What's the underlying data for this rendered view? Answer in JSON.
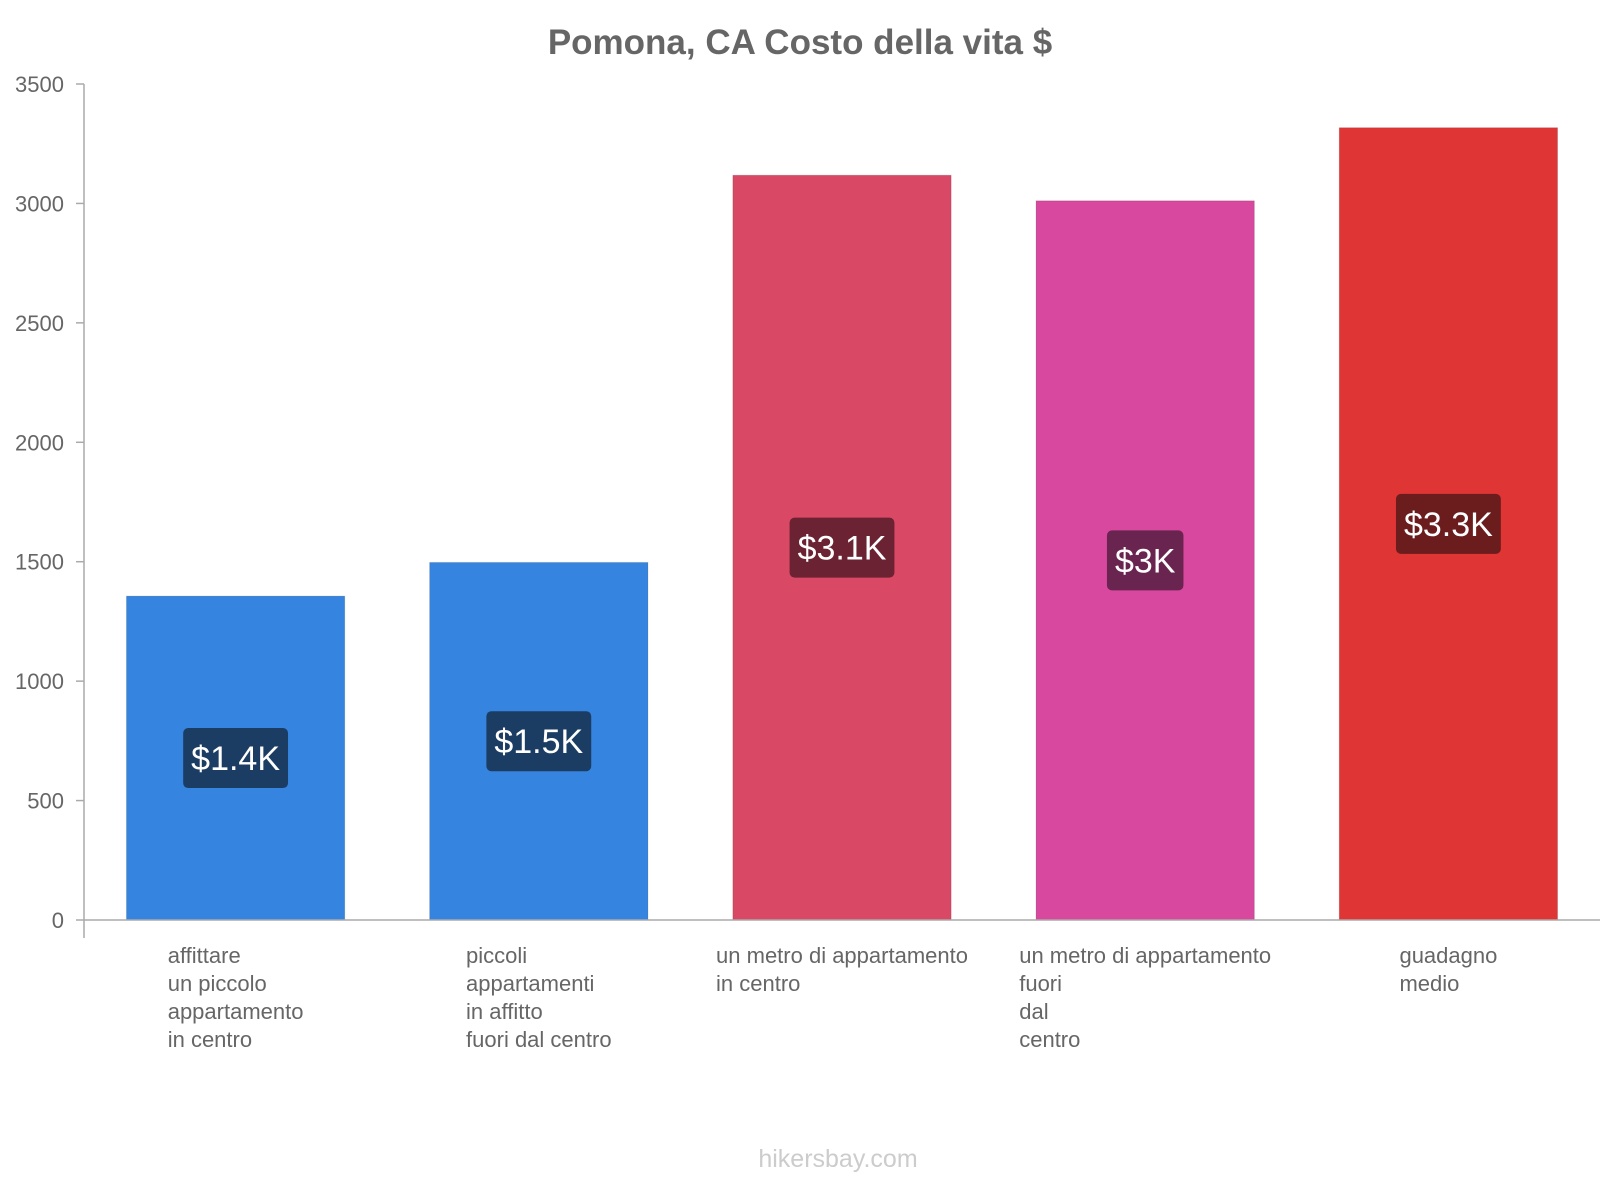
{
  "chart_data": {
    "type": "bar",
    "title": "Pomona, CA Costo della vita $",
    "ylim": [
      0,
      3500
    ],
    "yticks": [
      0,
      500,
      1000,
      1500,
      2000,
      2500,
      3000,
      3500
    ],
    "categories": [
      [
        "affittare",
        "un piccolo",
        "appartamento",
        "in centro"
      ],
      [
        "piccoli",
        "appartamenti",
        "in affitto",
        "fuori dal centro"
      ],
      [
        "un metro di appartamento",
        "in centro"
      ],
      [
        "un metro di appartamento",
        "fuori",
        "dal",
        "centro"
      ],
      [
        "guadagno",
        "medio"
      ]
    ],
    "values": [
      1356,
      1497,
      3118,
      3011,
      3317
    ],
    "data_labels": [
      "$1.4K",
      "$1.5K",
      "$3.1K",
      "$3K",
      "$3.3K"
    ],
    "colors": [
      "#3584e0",
      "#3584e0",
      "#d94965",
      "#d8489e",
      "#e03535"
    ],
    "label_bg_colors": [
      "#1c3d63",
      "#1c3d63",
      "#6b2232",
      "#6a2450",
      "#6b1c1c"
    ]
  },
  "watermark": "hikersbay.com"
}
